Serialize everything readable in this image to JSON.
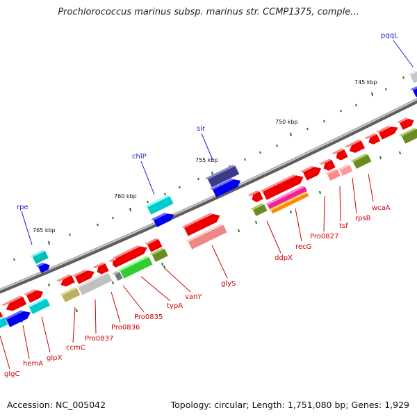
{
  "title": "Prochlorococcus marinus subsp. marinus str. CCMP1375, comple...",
  "footer": {
    "accession": "Accession: NC_005042",
    "summary": "Topology: circular; Length: 1,751,080 bp; Genes: 1,929"
  },
  "colors": {
    "backbone": "#8a8a8a",
    "tick": "#1a7a1a",
    "red_label": "#cc0000",
    "blue_label": "#1a1acc"
  },
  "ticks": [
    {
      "label": "745 kbp"
    },
    {
      "label": "750 kbp"
    },
    {
      "label": "755 kbp"
    },
    {
      "label": "760 kbp"
    },
    {
      "label": "765 kbp"
    }
  ],
  "blue_labels": [
    {
      "name": "pqqL"
    },
    {
      "name": "sir"
    },
    {
      "name": "chlP"
    },
    {
      "name": "rpe"
    }
  ],
  "red_labels": [
    {
      "name": "wcaA"
    },
    {
      "name": "rpsB"
    },
    {
      "name": "tsf"
    },
    {
      "name": "Pro0827"
    },
    {
      "name": "recG"
    },
    {
      "name": "ddpX"
    },
    {
      "name": "glyS"
    },
    {
      "name": "vanY"
    },
    {
      "name": "typA"
    },
    {
      "name": "Pro0835"
    },
    {
      "name": "Pro0836"
    },
    {
      "name": "Pro0837"
    },
    {
      "name": "ccmC"
    },
    {
      "name": "glpX"
    },
    {
      "name": "hemA"
    },
    {
      "name": "glgC"
    }
  ]
}
